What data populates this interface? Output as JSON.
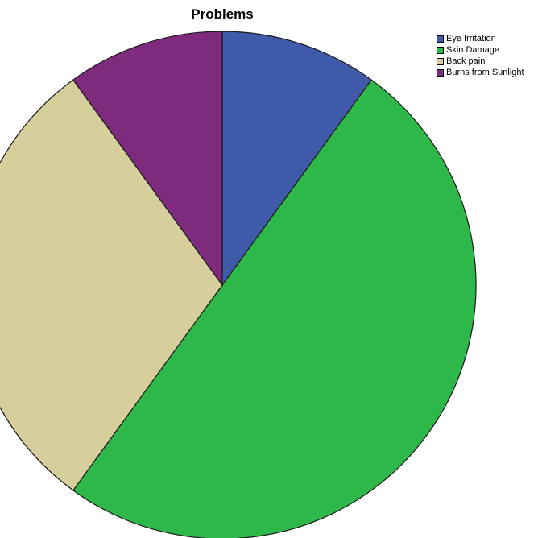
{
  "chart_data": {
    "type": "pie",
    "title": "Problems",
    "categories": [
      "Eye Irritation",
      "Skin Damage",
      "Back pain",
      "Burns from Sunlight"
    ],
    "values": [
      10,
      50,
      30,
      10
    ],
    "colors": [
      "#3f5aa8",
      "#2fb84a",
      "#d6cf9b",
      "#7e2a7d"
    ],
    "legend": "top-right"
  }
}
